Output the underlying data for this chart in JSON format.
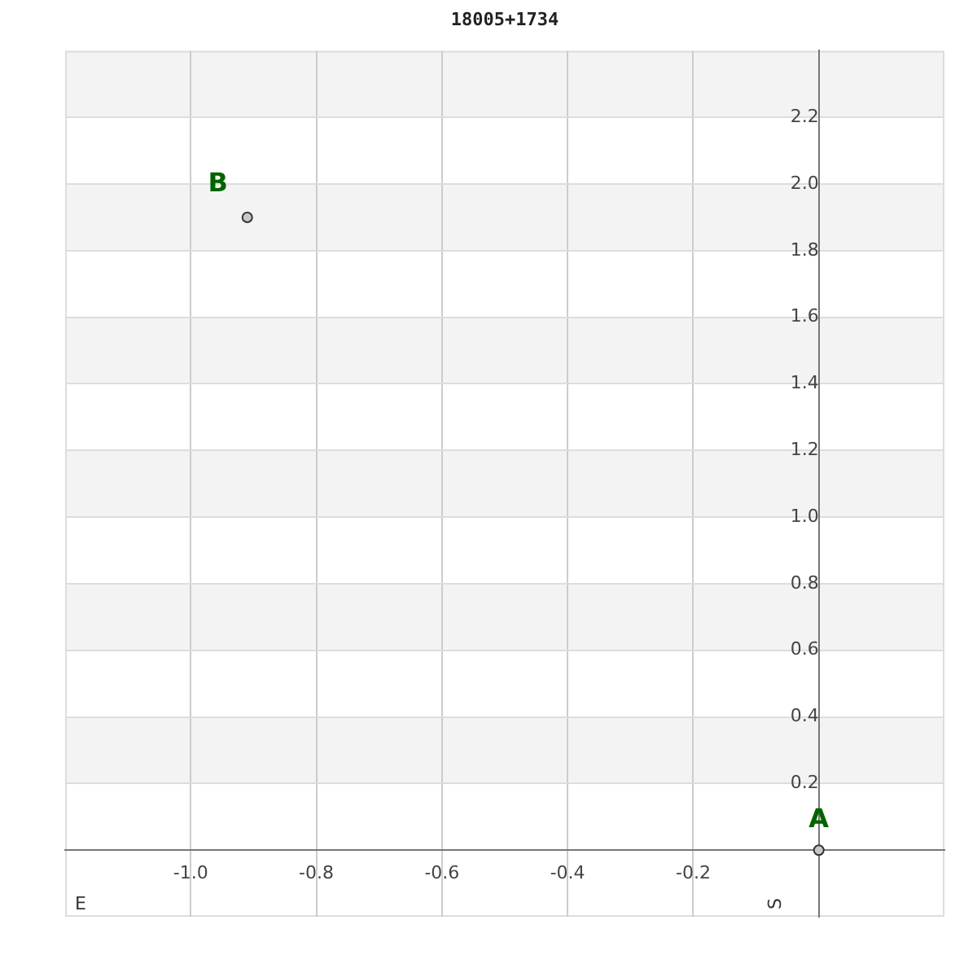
{
  "chart_data": {
    "type": "scatter",
    "title": "18005+1734",
    "x": [
      0,
      -0.91
    ],
    "values": [
      0,
      1.9
    ],
    "color": "#c8c8c8",
    "marker": "circle",
    "xlim": [
      -1.2,
      0.2
    ],
    "ylim": [
      -0.2,
      2.4
    ],
    "xticks": [
      {
        "value": -1.0,
        "label": "-1.0"
      },
      {
        "value": -0.8,
        "label": "-0.8"
      },
      {
        "value": -0.6,
        "label": "-0.6"
      },
      {
        "value": -0.4,
        "label": "-0.4"
      },
      {
        "value": -0.2,
        "label": "-0.2"
      }
    ],
    "yticks": [
      0.2,
      0.4,
      0.6,
      0.8,
      {
        "value": 1.0,
        "label": "1.0"
      },
      1.2,
      1.4,
      1.6,
      1.8,
      {
        "value": 2.0,
        "label": "2.0"
      },
      2.2
    ],
    "grid": true,
    "legend": false,
    "annotations": [
      {
        "text": "A",
        "x": 0,
        "y": 0
      },
      {
        "text": "B",
        "x": -0.91,
        "y": 1.9
      },
      "E",
      "S"
    ]
  }
}
